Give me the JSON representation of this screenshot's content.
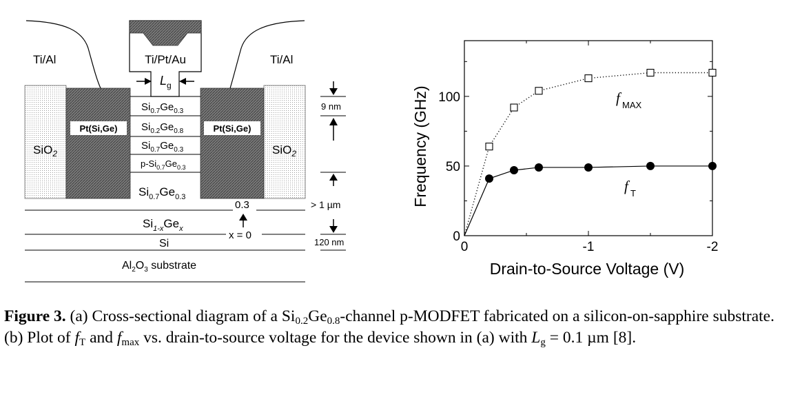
{
  "diagram": {
    "contacts": {
      "left": "Ti/Al",
      "right": "Ti/Al",
      "gate": "Ti/Pt/Au"
    },
    "gate_length": {
      "base": "L",
      "sub": "g"
    },
    "silicide_left": "Pt(Si,Ge)",
    "silicide_right": "Pt(Si,Ge)",
    "oxide": {
      "base": "SiO",
      "sub": "2"
    },
    "layers": [
      {
        "base1": "Si",
        "sub1": "0.7",
        "base2": "Ge",
        "sub2": "0.3"
      },
      {
        "base1": "Si",
        "sub1": "0.2",
        "base2": "Ge",
        "sub2": "0.8"
      },
      {
        "base1": "Si",
        "sub1": "0.7",
        "base2": "Ge",
        "sub2": "0.3"
      },
      {
        "base1": "p-Si",
        "sub1": "0.7",
        "base2": "Ge",
        "sub2": "0.3"
      }
    ],
    "buffer_layer": {
      "base1": "Si",
      "sub1": "0.7",
      "base2": "Ge",
      "sub2": "0.3"
    },
    "graded_layer": {
      "base1": "Si",
      "sub1": "1-x",
      "base2": "Ge",
      "sub2": "x"
    },
    "si_layer": "Si",
    "substrate": {
      "a": "Al",
      "a_sub": "2",
      "b": "O",
      "b_sub": "3",
      "rest": " substrate"
    },
    "x_top": "0.3",
    "x_bottom": "x = 0",
    "dim_9nm": "9 nm",
    "dim_1um": "> 1 µm",
    "dim_120nm": "120 nm"
  },
  "chart_data": {
    "type": "line",
    "ylabel": "Frequency (GHz)",
    "xlabel": "Drain-to-Source Voltage (V)",
    "xlim": [
      0,
      -2
    ],
    "ylim": [
      0,
      140
    ],
    "x_ticks": [
      0,
      -1,
      -2
    ],
    "x_tick_labels": [
      "0",
      "-1",
      "-2"
    ],
    "y_ticks": [
      0,
      50,
      100
    ],
    "y_tick_labels": [
      "0",
      "50",
      "100"
    ],
    "grid": false,
    "series": [
      {
        "name": "fMAX",
        "label_base": "f",
        "label_sub": "MAX",
        "marker": "open-square",
        "line": "dotted",
        "x": [
          0,
          -0.2,
          -0.4,
          -0.6,
          -1.0,
          -1.5,
          -2.0
        ],
        "y": [
          0,
          64,
          92,
          104,
          113,
          117,
          117
        ]
      },
      {
        "name": "fT",
        "label_base": "f",
        "label_sub": "T",
        "marker": "filled-circle",
        "line": "solid",
        "x": [
          0,
          -0.2,
          -0.4,
          -0.6,
          -1.0,
          -1.5,
          -2.0
        ],
        "y": [
          0,
          41,
          47,
          49,
          49,
          50,
          50
        ]
      }
    ]
  },
  "caption": {
    "label": "Figure 3.",
    "t1": " (a) Cross-sectional diagram of a Si",
    "s1": "0.2",
    "t2": "Ge",
    "s2": "0.8",
    "t3": "-channel p-MODFET fabricated on a silicon-on-sapphire substrate.  (b) Plot of ",
    "f1": "f",
    "s3": "T",
    "t4": " and ",
    "f2": "f",
    "s4": "max",
    "t5": " vs. drain-to-source voltage for the device shown in (a) with ",
    "l1": "L",
    "s5": "g",
    "t6": " = 0.1 µm [8]."
  }
}
